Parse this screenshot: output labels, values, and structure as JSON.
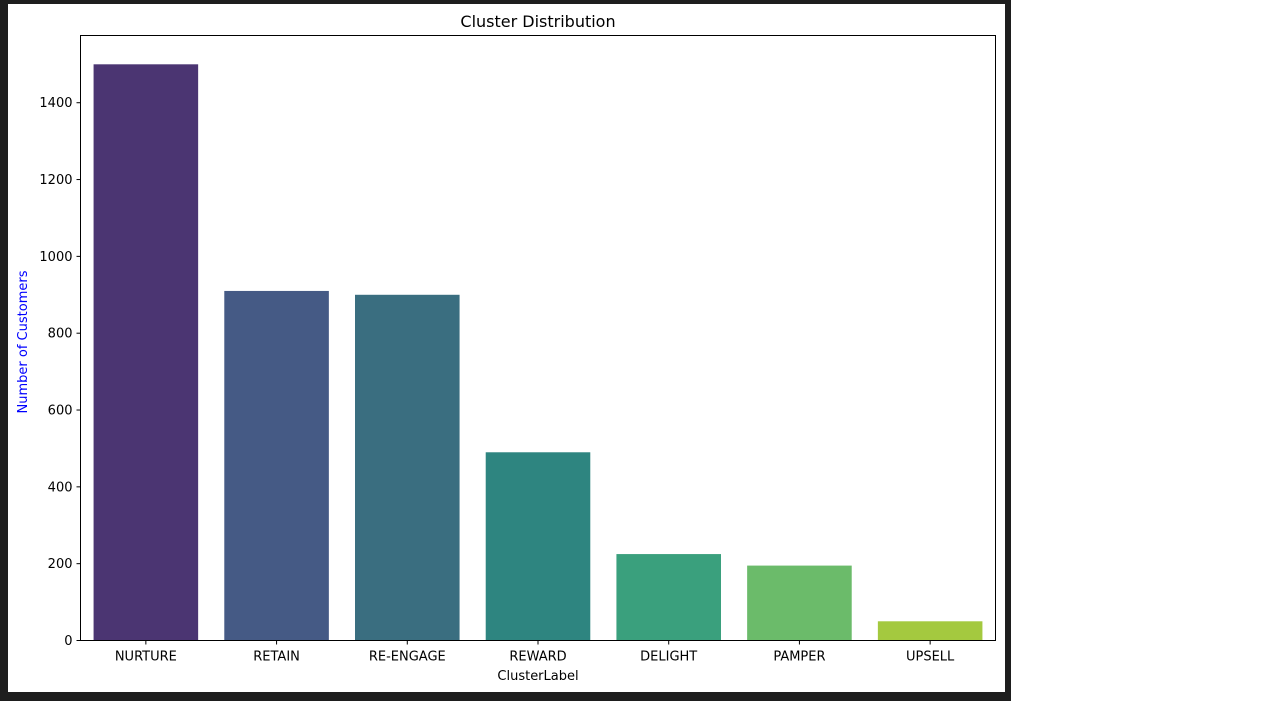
{
  "colors": {
    "frame": "#1e1e1e",
    "background": "#ffffff",
    "axis": "#000000",
    "ylabel": "#0000ff"
  },
  "chart_data": {
    "type": "bar",
    "title": "Cluster Distribution",
    "xlabel": "ClusterLabel",
    "ylabel": "Number of Customers",
    "categories": [
      "NURTURE",
      "RETAIN",
      "RE-ENGAGE",
      "REWARD",
      "DELIGHT",
      "PAMPER",
      "UPSELL"
    ],
    "values": [
      1500,
      910,
      900,
      490,
      225,
      195,
      50
    ],
    "colors": [
      "#4b3572",
      "#455a85",
      "#3a6e80",
      "#2e8580",
      "#3aa07d",
      "#6bbb6a",
      "#a4c93f"
    ],
    "ylim": [
      0,
      1575
    ],
    "yticks": [
      0,
      200,
      400,
      600,
      800,
      1000,
      1200,
      1400
    ],
    "grid": false,
    "legend": "none"
  }
}
